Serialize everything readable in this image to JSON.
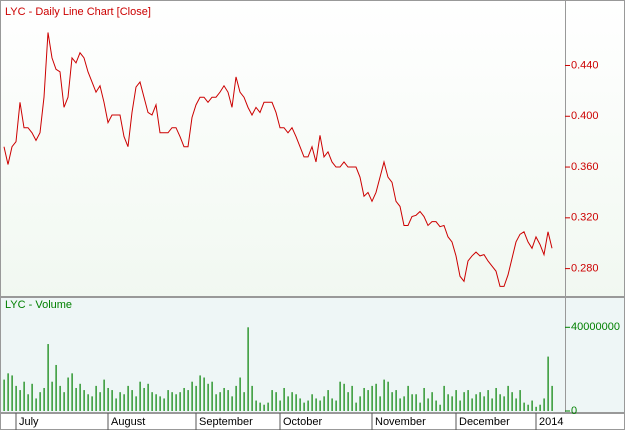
{
  "chart_data": [
    {
      "type": "line",
      "title": "LYC - Daily Line Chart [Close]",
      "color": "#cc0000",
      "ylim": [
        0.26,
        0.49
      ],
      "yticks": [
        {
          "value": 0.28,
          "label": "0.280"
        },
        {
          "value": 0.32,
          "label": "0.320"
        },
        {
          "value": 0.36,
          "label": "0.360"
        },
        {
          "value": 0.4,
          "label": "0.400"
        },
        {
          "value": 0.44,
          "label": "0.440"
        }
      ],
      "values": [
        0.376,
        0.362,
        0.376,
        0.38,
        0.411,
        0.391,
        0.391,
        0.387,
        0.381,
        0.387,
        0.415,
        0.466,
        0.446,
        0.437,
        0.435,
        0.407,
        0.415,
        0.446,
        0.442,
        0.45,
        0.446,
        0.435,
        0.427,
        0.419,
        0.424,
        0.411,
        0.395,
        0.401,
        0.401,
        0.401,
        0.384,
        0.376,
        0.403,
        0.423,
        0.427,
        0.415,
        0.403,
        0.401,
        0.409,
        0.387,
        0.387,
        0.387,
        0.391,
        0.391,
        0.384,
        0.376,
        0.376,
        0.399,
        0.409,
        0.415,
        0.415,
        0.411,
        0.415,
        0.415,
        0.419,
        0.424,
        0.419,
        0.407,
        0.431,
        0.419,
        0.415,
        0.407,
        0.401,
        0.407,
        0.403,
        0.411,
        0.411,
        0.411,
        0.403,
        0.391,
        0.391,
        0.387,
        0.391,
        0.384,
        0.376,
        0.368,
        0.368,
        0.376,
        0.364,
        0.385,
        0.368,
        0.372,
        0.364,
        0.36,
        0.36,
        0.364,
        0.36,
        0.36,
        0.36,
        0.352,
        0.337,
        0.34,
        0.333,
        0.34,
        0.352,
        0.364,
        0.352,
        0.348,
        0.333,
        0.329,
        0.314,
        0.314,
        0.321,
        0.322,
        0.325,
        0.321,
        0.314,
        0.317,
        0.317,
        0.313,
        0.314,
        0.305,
        0.301,
        0.29,
        0.274,
        0.27,
        0.286,
        0.29,
        0.293,
        0.29,
        0.291,
        0.286,
        0.282,
        0.278,
        0.266,
        0.266,
        0.275,
        0.288,
        0.301,
        0.307,
        0.309,
        0.301,
        0.296,
        0.305,
        0.299,
        0.291,
        0.309,
        0.296
      ]
    },
    {
      "type": "bar",
      "title": "LYC - Volume",
      "color": "#008000",
      "ylim": [
        0,
        54000000
      ],
      "yticks": [
        0,
        40000000
      ],
      "categories": [
        null,
        null,
        null,
        "July",
        null,
        null,
        null,
        null,
        null,
        null,
        null,
        null,
        null,
        null,
        null,
        null,
        null,
        null,
        null,
        null,
        null,
        null,
        null,
        null,
        null,
        null,
        "August",
        null,
        null,
        null,
        null,
        null,
        null,
        null,
        null,
        null,
        null,
        null,
        null,
        null,
        null,
        null,
        null,
        null,
        null,
        null,
        null,
        null,
        "September",
        null,
        null,
        null,
        null,
        null,
        null,
        null,
        null,
        null,
        null,
        null,
        null,
        null,
        null,
        null,
        null,
        null,
        null,
        null,
        null,
        "October",
        null,
        null,
        null,
        null,
        null,
        null,
        null,
        null,
        null,
        null,
        null,
        null,
        null,
        null,
        null,
        null,
        null,
        null,
        null,
        null,
        null,
        null,
        "November",
        null,
        null,
        null,
        null,
        null,
        null,
        null,
        null,
        null,
        null,
        null,
        null,
        null,
        null,
        null,
        null,
        null,
        null,
        null,
        null,
        "December",
        null,
        null,
        null,
        null,
        null,
        null,
        null,
        null,
        null,
        null,
        null,
        null,
        null,
        null,
        null,
        null,
        null,
        null,
        null,
        "2014",
        null,
        null,
        null,
        null
      ],
      "values": [
        15000000,
        18000000,
        17000000,
        12000000,
        10000000,
        14000000,
        8000000,
        13000000,
        6000000,
        9000000,
        11000000,
        32000000,
        14000000,
        22000000,
        12000000,
        9000000,
        16000000,
        18000000,
        11000000,
        13000000,
        10000000,
        8000000,
        7000000,
        12000000,
        9000000,
        15000000,
        11000000,
        10000000,
        6000000,
        9000000,
        8000000,
        12000000,
        10000000,
        7000000,
        14000000,
        11000000,
        13000000,
        9000000,
        8000000,
        7000000,
        6000000,
        10000000,
        9000000,
        8000000,
        9000000,
        11000000,
        10000000,
        14000000,
        12000000,
        17000000,
        16000000,
        13000000,
        14000000,
        8000000,
        9000000,
        11000000,
        10000000,
        7000000,
        12000000,
        16000000,
        9000000,
        40000000,
        12000000,
        5000000,
        4000000,
        3000000,
        4000000,
        10000000,
        9000000,
        5000000,
        11000000,
        7000000,
        9000000,
        8000000,
        6000000,
        4000000,
        5000000,
        8000000,
        6000000,
        5000000,
        7000000,
        10000000,
        6000000,
        5000000,
        14000000,
        13000000,
        9000000,
        12000000,
        4000000,
        7000000,
        11000000,
        10000000,
        12000000,
        13000000,
        7000000,
        15000000,
        14000000,
        9000000,
        10000000,
        6000000,
        7000000,
        12000000,
        8000000,
        8000000,
        4000000,
        11000000,
        6000000,
        9000000,
        5000000,
        3000000,
        12000000,
        8000000,
        7000000,
        10000000,
        5000000,
        9000000,
        10000000,
        6000000,
        8000000,
        9000000,
        7000000,
        10000000,
        6000000,
        11000000,
        8000000,
        7000000,
        12000000,
        9000000,
        6000000,
        10000000,
        4000000,
        3000000,
        5000000,
        2000000,
        3000000,
        6000000,
        26000000,
        12000000
      ]
    }
  ]
}
